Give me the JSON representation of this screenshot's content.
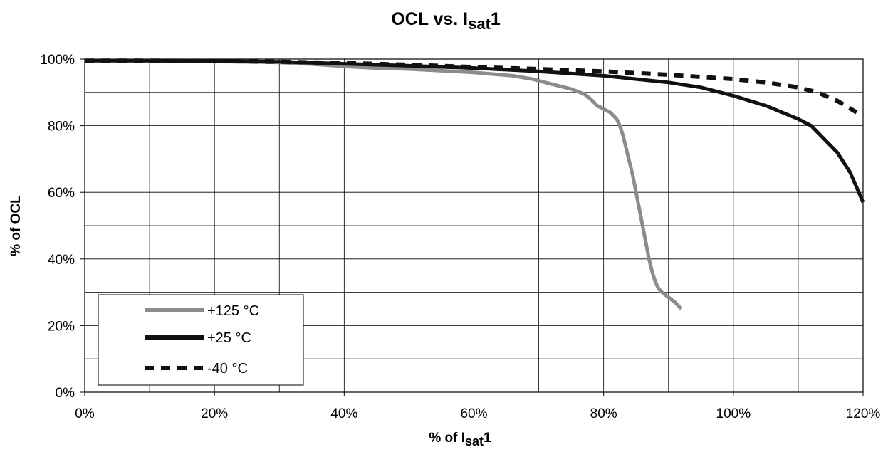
{
  "chart_data": {
    "type": "line",
    "title": {
      "main": "OCL vs. I",
      "sub": "sat",
      "suffix": "1"
    },
    "xlabel": {
      "main": "% of I",
      "sub": "sat",
      "suffix": "1"
    },
    "ylabel": "% of OCL",
    "xlim": [
      0,
      120
    ],
    "ylim": [
      0,
      100
    ],
    "xticks": [
      0,
      20,
      40,
      60,
      80,
      100,
      120
    ],
    "xtick_labels": [
      "0%",
      "20%",
      "40%",
      "60%",
      "80%",
      "100%",
      "120%"
    ],
    "yticks": [
      0,
      20,
      40,
      60,
      80,
      100
    ],
    "ytick_labels": [
      "0%",
      "20%",
      "40%",
      "60%",
      "80%",
      "100%"
    ],
    "xgrid_step": 10,
    "ygrid_step": 10,
    "grid": true,
    "legend_position": "bottom-left",
    "series": [
      {
        "name": "+125 °C",
        "color": "#8c8c8c",
        "style": "solid",
        "x": [
          0,
          10,
          20,
          30,
          35,
          40,
          45,
          50,
          55,
          60,
          63,
          66,
          69,
          71,
          73,
          75,
          77,
          78,
          79,
          80,
          81,
          82,
          82.5,
          83,
          83.5,
          84,
          84.5,
          85,
          85.5,
          86,
          86.5,
          87,
          87.5,
          88,
          88.5,
          89,
          90,
          91,
          92
        ],
        "y": [
          99.5,
          99.5,
          99.3,
          99,
          98.5,
          97.8,
          97.3,
          97,
          96.5,
          96,
          95.5,
          95,
          94,
          93,
          92,
          91,
          89.5,
          88,
          86,
          85,
          84,
          82,
          80,
          77,
          73,
          69,
          65,
          60,
          55,
          50,
          45,
          40,
          36,
          33,
          31,
          30,
          28.5,
          27,
          25
        ]
      },
      {
        "name": "+25 °C",
        "color": "#111111",
        "style": "solid",
        "x": [
          0,
          10,
          20,
          30,
          40,
          50,
          60,
          70,
          80,
          85,
          90,
          95,
          100,
          105,
          110,
          112,
          114,
          116,
          118,
          120
        ],
        "y": [
          99.5,
          99.5,
          99.4,
          99.2,
          98.6,
          98,
          97.3,
          96.3,
          95,
          94,
          93,
          91.5,
          89,
          86,
          82,
          80,
          76,
          72,
          66,
          57
        ]
      },
      {
        "name": "-40 °C",
        "color": "#111111",
        "style": "dashed",
        "x": [
          0,
          10,
          20,
          30,
          40,
          50,
          60,
          70,
          80,
          90,
          100,
          105,
          110,
          113,
          116,
          119
        ],
        "y": [
          99.5,
          99.5,
          99.4,
          99.2,
          98.8,
          98.3,
          97.6,
          97,
          96.3,
          95.3,
          94,
          93,
          91.5,
          90,
          87.5,
          84
        ]
      }
    ]
  }
}
